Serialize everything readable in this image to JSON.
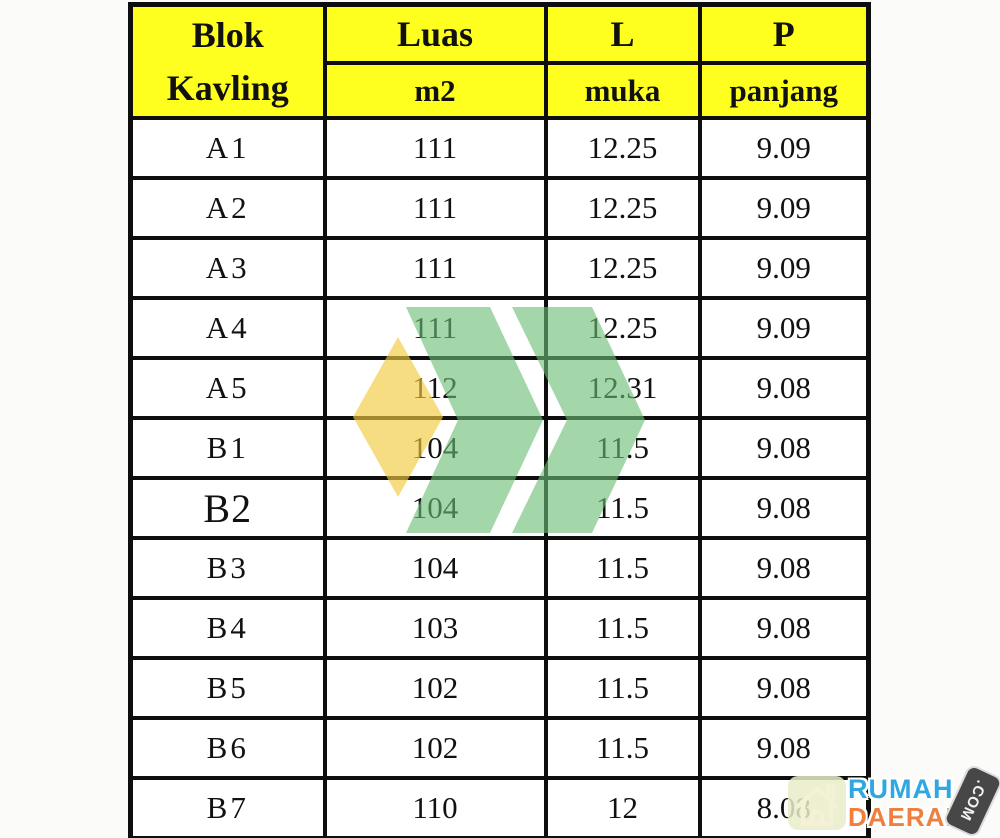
{
  "colors": {
    "header_bg": "#ffff1f",
    "table_border": "#0e0e0e",
    "watermark_diamond": "#f2cb3e",
    "watermark_chevron": "#6abe76",
    "logo_rumah_blue": "#2fa8e1",
    "logo_daerah_orange": "#f07e3e",
    "logo_com_badge_bg": "#474747",
    "logo_house_badge_bg": "#e9edc8"
  },
  "table": {
    "header": {
      "blok_line1": "Blok",
      "blok_line2": "Kavling",
      "luas": "Luas",
      "luas_unit": "m2",
      "l": "L",
      "l_sub": "muka",
      "p": "P",
      "p_sub": "panjang"
    },
    "columns": [
      "blok",
      "luas",
      "muka",
      "panjang"
    ],
    "rows": [
      {
        "blok": "A1",
        "luas": "111",
        "muka": "12.25",
        "panjang": "9.09"
      },
      {
        "blok": "A2",
        "luas": "111",
        "muka": "12.25",
        "panjang": "9.09"
      },
      {
        "blok": "A3",
        "luas": "111",
        "muka": "12.25",
        "panjang": "9.09"
      },
      {
        "blok": "A4",
        "luas": "111",
        "muka": "12.25",
        "panjang": "9.09"
      },
      {
        "blok": "A5",
        "luas": "112",
        "muka": "12.31",
        "panjang": "9.08"
      },
      {
        "blok": "B1",
        "luas": "104",
        "muka": "11.5",
        "panjang": "9.08"
      },
      {
        "blok": "B2",
        "luas": "104",
        "muka": "11.5",
        "panjang": "9.08"
      },
      {
        "blok": "B3",
        "luas": "104",
        "muka": "11.5",
        "panjang": "9.08"
      },
      {
        "blok": "B4",
        "luas": "103",
        "muka": "11.5",
        "panjang": "9.08"
      },
      {
        "blok": "B5",
        "luas": "102",
        "muka": "11.5",
        "panjang": "9.08"
      },
      {
        "blok": "B6",
        "luas": "102",
        "muka": "11.5",
        "panjang": "9.08"
      },
      {
        "blok": "B7",
        "luas": "110",
        "muka": "12",
        "panjang": "8.08"
      }
    ]
  },
  "watermark": {
    "shapes": [
      "diamond",
      "chevron-right",
      "chevron-right"
    ]
  },
  "logo": {
    "line1": "RUMAH",
    "line2": "DAERAH",
    "badge": ".COM"
  }
}
